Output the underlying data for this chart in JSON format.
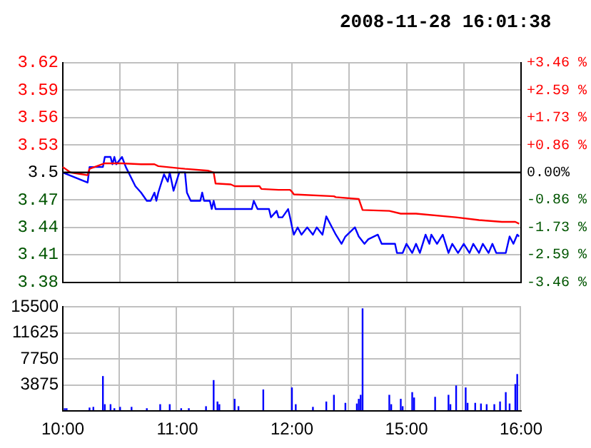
{
  "chart_data": [
    {
      "type": "line",
      "title": "2008-11-28 16:01:38",
      "marker": "none",
      "line_style": "solid",
      "grid": true,
      "tick_labels": "y",
      "categories": [
        null,
        null,
        null,
        null,
        null,
        null,
        null,
        null,
        null,
        null,
        null,
        null,
        null,
        null,
        null,
        null,
        null,
        null,
        null,
        null,
        null,
        null,
        null,
        null,
        null,
        null,
        null,
        null,
        null,
        null,
        null,
        null,
        null,
        null,
        null,
        null,
        null,
        null,
        null,
        null,
        null,
        null,
        null,
        null,
        null,
        null,
        null,
        null,
        null,
        null,
        null,
        null,
        null,
        null,
        null,
        null,
        null,
        null,
        null,
        null,
        null,
        null,
        null,
        null,
        null,
        null,
        null,
        null,
        null,
        null,
        null,
        null,
        null,
        null,
        null,
        null,
        null,
        null,
        null,
        null,
        null,
        null,
        null,
        null,
        null,
        null,
        null,
        null,
        null,
        null,
        null,
        null,
        null,
        null,
        null,
        null,
        null,
        null,
        null,
        null,
        null,
        null,
        null,
        null,
        null,
        null,
        null,
        null,
        null,
        null,
        null,
        null,
        null,
        null,
        null,
        null,
        null,
        null,
        null,
        null,
        null,
        null,
        null,
        null,
        null,
        null,
        null,
        null,
        null,
        null,
        null,
        null,
        null,
        null,
        null,
        null,
        null,
        null,
        null,
        null,
        null,
        null,
        null,
        null,
        null,
        null,
        null,
        null,
        null,
        null,
        null,
        null,
        null,
        null,
        null,
        null,
        null,
        null,
        null,
        null,
        null,
        null,
        null,
        null,
        null,
        null,
        null,
        null,
        null,
        null,
        null,
        null,
        null,
        null,
        null,
        null,
        null,
        null,
        null,
        null,
        null,
        null,
        null,
        null,
        null,
        null,
        null,
        null,
        null,
        null,
        null,
        null,
        null,
        null,
        null,
        null,
        null,
        null,
        null,
        null,
        null,
        null,
        null,
        null,
        null,
        null,
        null,
        null,
        null,
        null,
        null,
        null,
        null,
        null,
        null,
        null,
        null,
        null,
        null,
        null,
        null,
        null,
        null,
        null,
        null,
        null,
        null,
        null,
        null,
        null,
        null,
        null,
        null,
        null,
        null,
        null,
        null,
        null,
        null,
        null,
        null
      ],
      "ylim": [
        3.38,
        3.62
      ],
      "yticks": [
        3.38,
        3.41,
        3.44,
        3.47,
        3.5,
        3.53,
        3.56,
        3.59,
        3.62
      ],
      "y2lim": [
        -3.46,
        3.46
      ],
      "y2ticks": [
        {
          "value": -3.46,
          "label": "-3.46 %"
        },
        {
          "value": -2.59,
          "label": "-2.59 %"
        },
        {
          "value": -1.73,
          "label": "-1.73 %"
        },
        {
          "value": -0.86,
          "label": "-0.86 %"
        },
        {
          "value": 0,
          "label": "0.00%"
        },
        {
          "value": 0.86,
          "label": "+0.86 %"
        },
        {
          "value": 1.73,
          "label": "+1.73 %"
        },
        {
          "value": 2.59,
          "label": "+2.59 %"
        },
        {
          "value": 3.46,
          "label": "+3.46 %"
        }
      ],
      "ref_lines": [
        {
          "axis": "y",
          "value": 3.5,
          "color": "#000000"
        }
      ],
      "series": [
        {
          "color": "#ff0000",
          "values": [
            3.506,
            null,
            null,
            null,
            3.5,
            null,
            null,
            null,
            null,
            null,
            null,
            null,
            null,
            3.497,
            3.504,
            null,
            null,
            null,
            null,
            null,
            null,
            null,
            3.51,
            null,
            null,
            null,
            null,
            null,
            null,
            null,
            null,
            3.51,
            null,
            null,
            null,
            null,
            null,
            null,
            null,
            null,
            null,
            3.509,
            null,
            null,
            null,
            null,
            null,
            null,
            3.509,
            null,
            3.507,
            null,
            null,
            null,
            null,
            null,
            null,
            null,
            null,
            null,
            null,
            null,
            null,
            null,
            3.504,
            null,
            null,
            null,
            null,
            null,
            null,
            null,
            null,
            null,
            null,
            null,
            3.502,
            null,
            null,
            3.5,
            3.488,
            null,
            null,
            null,
            null,
            null,
            null,
            null,
            3.487,
            null,
            3.485,
            null,
            null,
            null,
            null,
            null,
            null,
            null,
            null,
            null,
            null,
            null,
            null,
            3.485,
            3.482,
            null,
            null,
            null,
            null,
            null,
            null,
            null,
            null,
            3.481,
            null,
            null,
            null,
            null,
            null,
            3.481,
            3.479,
            3.476,
            null,
            null,
            null,
            null,
            null,
            null,
            null,
            null,
            null,
            null,
            null,
            null,
            null,
            null,
            null,
            null,
            null,
            null,
            null,
            null,
            3.474,
            3.473,
            null,
            null,
            null,
            null,
            null,
            null,
            null,
            null,
            null,
            null,
            null,
            3.471,
            null,
            3.459,
            null,
            null,
            null,
            null,
            null,
            null,
            null,
            null,
            null,
            null,
            null,
            null,
            null,
            3.458,
            null,
            null,
            null,
            null,
            null,
            3.455,
            null,
            null,
            null,
            null,
            null,
            null,
            null,
            3.455,
            null,
            null,
            null,
            null,
            null,
            null,
            null,
            null,
            null,
            null,
            null,
            null,
            null,
            null,
            null,
            null,
            null,
            null,
            null,
            null,
            3.451,
            null,
            null,
            null,
            null,
            null,
            null,
            null,
            null,
            null,
            null,
            null,
            3.448,
            null,
            null,
            null,
            null,
            null,
            null,
            null,
            null,
            null,
            null,
            null,
            3.446,
            null,
            null,
            null,
            null,
            null,
            null,
            3.446,
            null,
            3.444,
            null
          ]
        },
        {
          "color": "#0000ff",
          "values": [
            3.5,
            null,
            null,
            null,
            null,
            null,
            null,
            null,
            null,
            null,
            null,
            null,
            null,
            3.489,
            3.506,
            null,
            null,
            null,
            null,
            null,
            null,
            3.506,
            3.517,
            null,
            null,
            3.517,
            3.509,
            3.517,
            3.509,
            null,
            null,
            3.517,
            null,
            3.506,
            null,
            null,
            null,
            null,
            3.485,
            null,
            null,
            3.478,
            null,
            null,
            3.469,
            null,
            3.469,
            null,
            3.478,
            3.469,
            3.478,
            null,
            null,
            3.498,
            null,
            3.49,
            3.5,
            3.49,
            3.48,
            null,
            null,
            3.5,
            null,
            null,
            3.5,
            3.478,
            null,
            3.469,
            null,
            null,
            null,
            null,
            3.469,
            3.478,
            3.469,
            null,
            null,
            3.469,
            3.46,
            3.469,
            3.46,
            null,
            null,
            null,
            null,
            null,
            null,
            null,
            null,
            null,
            null,
            null,
            null,
            null,
            null,
            null,
            null,
            null,
            null,
            3.46,
            3.469,
            null,
            3.46,
            null,
            null,
            null,
            null,
            null,
            3.46,
            3.451,
            null,
            null,
            3.458,
            3.451,
            null,
            3.451,
            null,
            null,
            3.46,
            3.451,
            3.441,
            3.432,
            null,
            3.44,
            null,
            3.432,
            null,
            null,
            3.44,
            null,
            null,
            3.432,
            null,
            3.44,
            null,
            null,
            3.432,
            null,
            3.452,
            null,
            null,
            3.44,
            null,
            3.432,
            null,
            null,
            3.422,
            null,
            3.43,
            null,
            null,
            null,
            null,
            3.44,
            null,
            3.43,
            null,
            null,
            3.422,
            null,
            3.427,
            null,
            null,
            null,
            null,
            3.432,
            null,
            3.422,
            null,
            null,
            null,
            null,
            null,
            null,
            3.422,
            3.412,
            null,
            null,
            3.412,
            null,
            3.422,
            null,
            null,
            3.412,
            null,
            3.422,
            null,
            3.412,
            null,
            null,
            3.432,
            null,
            3.422,
            3.432,
            null,
            null,
            3.422,
            null,
            null,
            3.432,
            null,
            null,
            3.412,
            null,
            3.422,
            null,
            null,
            3.412,
            null,
            null,
            3.422,
            null,
            null,
            3.412,
            null,
            3.422,
            null,
            null,
            3.412,
            null,
            3.422,
            null,
            null,
            3.412,
            null,
            3.422,
            null,
            3.412,
            null,
            null,
            null,
            null,
            3.412,
            null,
            3.43,
            null,
            3.422,
            null,
            3.432,
            3.43,
            null
          ]
        }
      ]
    },
    {
      "type": "bar",
      "grid": true,
      "categories": [
        "10:00",
        null,
        null,
        null,
        null,
        null,
        null,
        null,
        null,
        null,
        null,
        null,
        null,
        null,
        null,
        null,
        null,
        null,
        null,
        null,
        null,
        null,
        null,
        null,
        null,
        null,
        null,
        null,
        null,
        null,
        null,
        null,
        null,
        null,
        null,
        null,
        null,
        null,
        null,
        null,
        null,
        null,
        null,
        null,
        null,
        null,
        null,
        null,
        null,
        null,
        null,
        null,
        null,
        null,
        null,
        null,
        null,
        null,
        null,
        null,
        "11:00",
        null,
        null,
        null,
        null,
        null,
        null,
        null,
        null,
        null,
        null,
        null,
        null,
        null,
        null,
        null,
        null,
        null,
        null,
        null,
        null,
        null,
        null,
        null,
        null,
        null,
        null,
        null,
        null,
        null,
        null,
        null,
        null,
        null,
        null,
        null,
        null,
        null,
        null,
        null,
        null,
        null,
        null,
        null,
        null,
        null,
        null,
        null,
        null,
        null,
        null,
        null,
        null,
        null,
        null,
        null,
        null,
        null,
        null,
        null,
        "12:00",
        null,
        null,
        null,
        null,
        null,
        null,
        null,
        null,
        null,
        null,
        null,
        null,
        null,
        null,
        null,
        null,
        null,
        null,
        null,
        null,
        null,
        null,
        null,
        null,
        null,
        null,
        null,
        null,
        null,
        null,
        null,
        null,
        null,
        null,
        null,
        null,
        null,
        null,
        null,
        null,
        null,
        null,
        null,
        null,
        null,
        null,
        null,
        null,
        null,
        null,
        null,
        null,
        null,
        null,
        null,
        null,
        null,
        null,
        null,
        "15:00",
        null,
        null,
        null,
        null,
        null,
        null,
        null,
        null,
        null,
        null,
        null,
        null,
        null,
        null,
        null,
        null,
        null,
        null,
        null,
        null,
        null,
        null,
        null,
        null,
        null,
        null,
        null,
        null,
        null,
        null,
        null,
        null,
        null,
        null,
        null,
        null,
        null,
        null,
        null,
        null,
        null,
        null,
        null,
        null,
        null,
        null,
        null,
        null,
        null,
        null,
        null,
        null,
        null,
        null,
        null,
        null,
        null,
        null,
        null,
        "16:00"
      ],
      "ylim": [
        0,
        15500
      ],
      "yticks": [
        {
          "value": 0,
          "label": null
        },
        3875,
        7750,
        11625,
        15500
      ],
      "values": [
        null,
        400,
        400,
        null,
        null,
        null,
        null,
        null,
        null,
        null,
        null,
        null,
        null,
        null,
        500,
        null,
        600,
        null,
        null,
        null,
        null,
        5200,
        1000,
        null,
        null,
        1000,
        null,
        400,
        null,
        null,
        600,
        null,
        null,
        null,
        null,
        null,
        600,
        null,
        null,
        null,
        null,
        null,
        null,
        null,
        400,
        null,
        null,
        null,
        null,
        null,
        null,
        1000,
        null,
        null,
        null,
        null,
        1000,
        null,
        null,
        null,
        null,
        null,
        400,
        null,
        null,
        null,
        400,
        null,
        null,
        null,
        null,
        null,
        null,
        null,
        null,
        700,
        null,
        null,
        null,
        4600,
        null,
        1400,
        1000,
        null,
        null,
        null,
        null,
        null,
        null,
        null,
        1800,
        null,
        700,
        null,
        null,
        null,
        null,
        null,
        null,
        null,
        null,
        null,
        null,
        null,
        null,
        3200,
        null,
        null,
        null,
        null,
        null,
        null,
        null,
        null,
        null,
        null,
        null,
        null,
        null,
        null,
        3500,
        null,
        1000,
        null,
        null,
        null,
        null,
        null,
        null,
        null,
        null,
        600,
        null,
        null,
        null,
        null,
        null,
        null,
        1400,
        null,
        null,
        null,
        2400,
        null,
        null,
        null,
        null,
        null,
        1200,
        null,
        null,
        null,
        null,
        null,
        1100,
        1800,
        2400,
        15300,
        null,
        null,
        null,
        null,
        null,
        null,
        null,
        null,
        null,
        null,
        null,
        null,
        null,
        2400,
        1000,
        null,
        null,
        null,
        null,
        1800,
        700,
        null,
        null,
        null,
        null,
        2800,
        2000,
        null,
        null,
        null,
        null,
        null,
        null,
        null,
        null,
        null,
        null,
        2100,
        null,
        null,
        null,
        null,
        null,
        null,
        2400,
        1000,
        null,
        null,
        3800,
        null,
        null,
        null,
        null,
        3500,
        1200,
        null,
        null,
        null,
        1200,
        null,
        null,
        1100,
        null,
        null,
        1000,
        null,
        null,
        null,
        1000,
        null,
        null,
        1400,
        null,
        null,
        2800,
        null,
        1100,
        null,
        null,
        4000,
        5500,
        null,
        null
      ],
      "color": "#0000ff"
    }
  ]
}
